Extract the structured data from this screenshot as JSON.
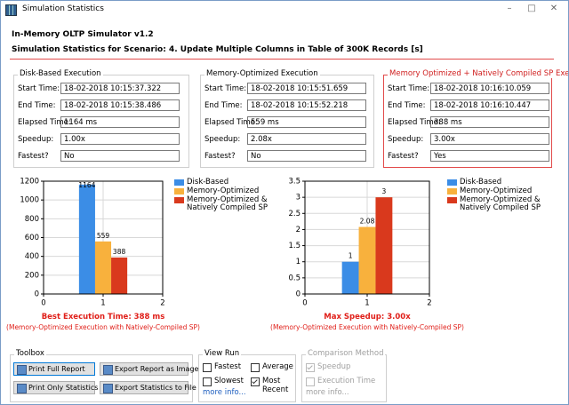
{
  "window": {
    "title": "Simulation Statistics"
  },
  "header": {
    "app": "In-Memory OLTP Simulator v1.2",
    "scenario": "Simulation Statistics for Scenario: 4. Update Multiple Columns in Table of 300K Records [s]"
  },
  "executions": [
    {
      "title": "Disk-Based Execution",
      "highlighted": false,
      "fields": [
        {
          "label": "Start Time:",
          "value": "18-02-2018 10:15:37.322"
        },
        {
          "label": "End Time:",
          "value": "18-02-2018 10:15:38.486"
        },
        {
          "label": "Elapsed Time:",
          "value": "1164 ms"
        },
        {
          "label": "Speedup:",
          "value": "1.00x"
        },
        {
          "label": "Fastest?",
          "value": "No"
        }
      ]
    },
    {
      "title": "Memory-Optimized Execution",
      "highlighted": false,
      "fields": [
        {
          "label": "Start Time:",
          "value": "18-02-2018 10:15:51.659"
        },
        {
          "label": "End Time:",
          "value": "18-02-2018 10:15:52.218"
        },
        {
          "label": "Elapsed Time:",
          "value": "559 ms"
        },
        {
          "label": "Speedup:",
          "value": "2.08x"
        },
        {
          "label": "Fastest?",
          "value": "No"
        }
      ]
    },
    {
      "title": "Memory Optimized + Natively Compiled SP Execution",
      "highlighted": true,
      "fields": [
        {
          "label": "Start Time:",
          "value": "18-02-2018 10:16:10.059"
        },
        {
          "label": "End Time:",
          "value": "18-02-2018 10:16:10.447"
        },
        {
          "label": "Elapsed Time:",
          "value": "388 ms"
        },
        {
          "label": "Speedup:",
          "value": "3.00x"
        },
        {
          "label": "Fastest?",
          "value": "Yes"
        }
      ]
    }
  ],
  "chart_data": [
    {
      "type": "bar",
      "x": [
        1
      ],
      "xlim": [
        0,
        2
      ],
      "xticks": [
        0,
        1,
        2
      ],
      "ylim": [
        0,
        1200
      ],
      "yticks": [
        0,
        200,
        400,
        600,
        800,
        1000,
        1200
      ],
      "grid": true,
      "series": [
        {
          "name": "Disk-Based",
          "color": "#3b8de6",
          "values": [
            1164
          ]
        },
        {
          "name": "Memory-Optimized",
          "color": "#f8b13d",
          "values": [
            559
          ]
        },
        {
          "name": "Memory-Optimized & Natively Compiled SP",
          "color": "#d9391d",
          "values": [
            388
          ]
        }
      ],
      "caption": "Best Execution Time: 388 ms",
      "caption_note": "(Memory-Optimized Execution with Natively-Compiled SP)"
    },
    {
      "type": "bar",
      "x": [
        1
      ],
      "xlim": [
        0,
        2
      ],
      "xticks": [
        0,
        1,
        2
      ],
      "ylim": [
        0,
        3.5
      ],
      "yticks": [
        0,
        0.5,
        1,
        1.5,
        2,
        2.5,
        3,
        3.5
      ],
      "grid": true,
      "series": [
        {
          "name": "Disk-Based",
          "color": "#3b8de6",
          "values": [
            1
          ]
        },
        {
          "name": "Memory-Optimized",
          "color": "#f8b13d",
          "values": [
            2.08
          ]
        },
        {
          "name": "Memory-Optimized & Natively Compiled SP",
          "color": "#d9391d",
          "values": [
            3
          ]
        }
      ],
      "caption": "Max Speedup: 3.00x",
      "caption_note": "(Memory-Optimized Execution with Natively-Compiled SP)"
    }
  ],
  "toolbox": {
    "title": "Toolbox",
    "buttons": [
      "Print Full Report",
      "Export Report as Image",
      "Print Only Statistics",
      "Export Statistics to File"
    ]
  },
  "view_run": {
    "title": "View Run",
    "options": [
      {
        "label": "Fastest",
        "checked": false
      },
      {
        "label": "Average",
        "checked": false
      },
      {
        "label": "Slowest",
        "checked": false
      },
      {
        "label": "Most Recent",
        "checked": true
      }
    ],
    "link": "more info..."
  },
  "comparison_method": {
    "title": "Comparison Method",
    "enabled": false,
    "options": [
      {
        "label": "Speedup",
        "checked": true
      },
      {
        "label": "Execution Time",
        "checked": false
      }
    ],
    "link": "more info..."
  }
}
